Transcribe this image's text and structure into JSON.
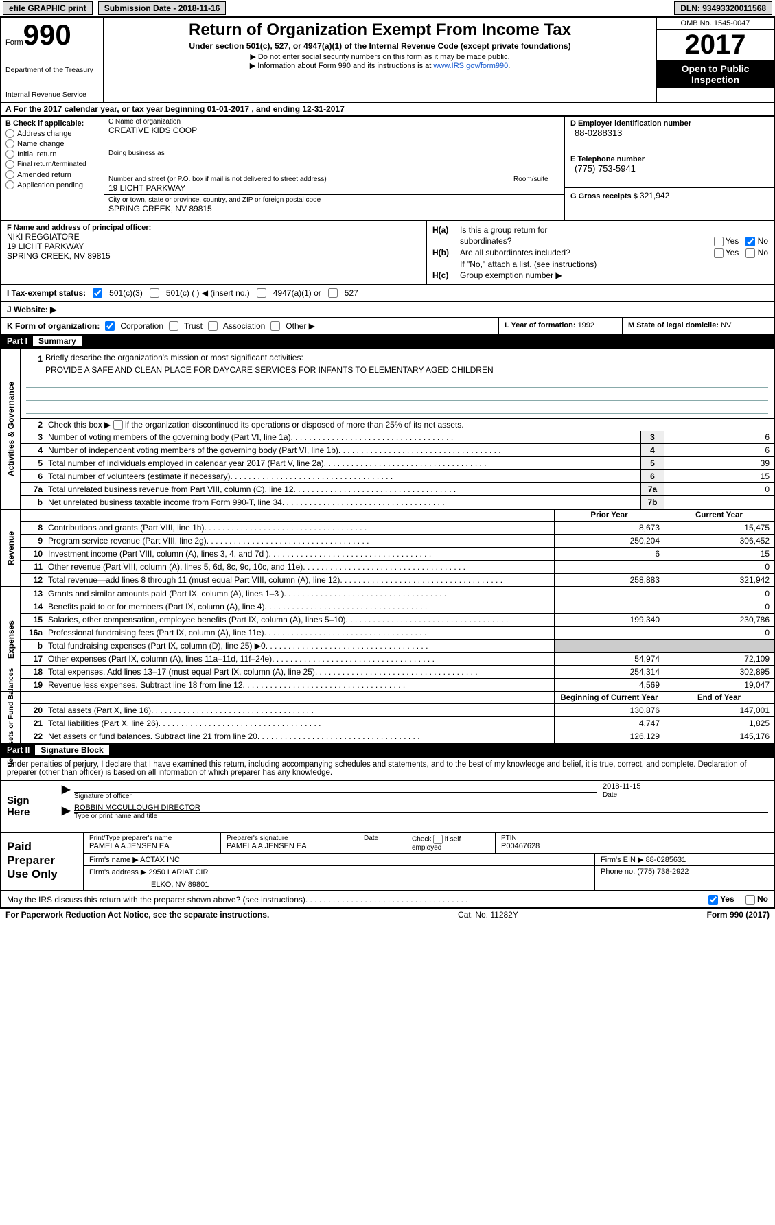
{
  "topbar": {
    "efile": "efile GRAPHIC print",
    "submission_label": "Submission Date - ",
    "submission_date": "2018-11-16",
    "dln_label": "DLN: ",
    "dln": "93493320011568"
  },
  "header": {
    "form_word": "Form",
    "form_num": "990",
    "dept1": "Department of the Treasury",
    "dept2": "Internal Revenue Service",
    "title": "Return of Organization Exempt From Income Tax",
    "subtitle": "Under section 501(c), 527, or 4947(a)(1) of the Internal Revenue Code (except private foundations)",
    "note1": "▶ Do not enter social security numbers on this form as it may be made public.",
    "note2_prefix": "▶ Information about Form 990 and its instructions is at ",
    "note2_link": "www.IRS.gov/form990",
    "omb": "OMB No. 1545-0047",
    "year": "2017",
    "open1": "Open to Public",
    "open2": "Inspection"
  },
  "rowA": "A  For the 2017 calendar year, or tax year beginning 01-01-2017   , and ending 12-31-2017",
  "sectionB": {
    "label": "B Check if applicable:",
    "opts": [
      "Address change",
      "Name change",
      "Initial return",
      "Final return/terminated",
      "Amended return",
      "Application pending"
    ]
  },
  "sectionC": {
    "name_label": "C Name of organization",
    "name": "CREATIVE KIDS COOP",
    "dba_label": "Doing business as",
    "dba": "",
    "street_label": "Number and street (or P.O. box if mail is not delivered to street address)",
    "street": "19 LICHT PARKWAY",
    "room_label": "Room/suite",
    "city_label": "City or town, state or province, country, and ZIP or foreign postal code",
    "city": "SPRING CREEK, NV  89815"
  },
  "sectionD": {
    "ein_label": "D Employer identification number",
    "ein": "88-0288313",
    "tel_label": "E Telephone number",
    "tel": "(775) 753-5941",
    "gross_label": "G Gross receipts $ ",
    "gross": "321,942"
  },
  "sectionF": {
    "label": "F  Name and address of principal officer:",
    "name": "NIKI REGGIATORE",
    "addr1": "19 LICHT PARKWAY",
    "addr2": "SPRING CREEK, NV  89815"
  },
  "sectionH": {
    "ha_label": "H(a)",
    "ha_text1": "Is this a group return for",
    "ha_text2": "subordinates?",
    "hb_label": "H(b)",
    "hb_text": "Are all subordinates included?",
    "h_instr": "If \"No,\" attach a list. (see instructions)",
    "hc_label": "H(c)",
    "hc_text": "Group exemption number ▶",
    "yes": "Yes",
    "no": "No"
  },
  "rowI": {
    "label": "I  Tax-exempt status:",
    "opt1": "501(c)(3)",
    "opt2": "501(c) (  ) ◀ (insert no.)",
    "opt3": "4947(a)(1) or",
    "opt4": "527"
  },
  "rowJ": "J  Website: ▶",
  "rowK": {
    "label": "K Form of organization:",
    "opts": [
      "Corporation",
      "Trust",
      "Association",
      "Other ▶"
    ],
    "year_label": "L Year of formation: ",
    "year": "1992",
    "state_label": "M State of legal domicile: ",
    "state": "NV"
  },
  "part1": {
    "header": "Part I",
    "title": "Summary",
    "vert_labels": [
      "Activities & Governance",
      "Revenue",
      "Expenses",
      "Net Assets or Fund Balances"
    ],
    "line1_label": "Briefly describe the organization's mission or most significant activities:",
    "line1_value": "PROVIDE A SAFE AND CLEAN PLACE FOR DAYCARE SERVICES FOR INFANTS TO ELEMENTARY AGED CHILDREN",
    "line2": "Check this box ▶      if the organization discontinued its operations or disposed of more than 25% of its net assets.",
    "governance_lines": [
      {
        "num": "3",
        "text": "Number of voting members of the governing body (Part VI, line 1a)",
        "box": "3",
        "val": "6"
      },
      {
        "num": "4",
        "text": "Number of independent voting members of the governing body (Part VI, line 1b)",
        "box": "4",
        "val": "6"
      },
      {
        "num": "5",
        "text": "Total number of individuals employed in calendar year 2017 (Part V, line 2a)",
        "box": "5",
        "val": "39"
      },
      {
        "num": "6",
        "text": "Total number of volunteers (estimate if necessary)",
        "box": "6",
        "val": "15"
      },
      {
        "num": "7a",
        "text": "Total unrelated business revenue from Part VIII, column (C), line 12",
        "box": "7a",
        "val": "0"
      },
      {
        "num": "b",
        "text": "Net unrelated business taxable income from Form 990-T, line 34",
        "box": "7b",
        "val": ""
      }
    ],
    "col_headers": {
      "prior": "Prior Year",
      "current": "Current Year"
    },
    "revenue_lines": [
      {
        "num": "8",
        "text": "Contributions and grants (Part VIII, line 1h)",
        "prior": "8,673",
        "current": "15,475"
      },
      {
        "num": "9",
        "text": "Program service revenue (Part VIII, line 2g)",
        "prior": "250,204",
        "current": "306,452"
      },
      {
        "num": "10",
        "text": "Investment income (Part VIII, column (A), lines 3, 4, and 7d )",
        "prior": "6",
        "current": "15"
      },
      {
        "num": "11",
        "text": "Other revenue (Part VIII, column (A), lines 5, 6d, 8c, 9c, 10c, and 11e)",
        "prior": "",
        "current": "0"
      },
      {
        "num": "12",
        "text": "Total revenue—add lines 8 through 11 (must equal Part VIII, column (A), line 12)",
        "prior": "258,883",
        "current": "321,942"
      }
    ],
    "expense_lines": [
      {
        "num": "13",
        "text": "Grants and similar amounts paid (Part IX, column (A), lines 1–3 )",
        "prior": "",
        "current": "0"
      },
      {
        "num": "14",
        "text": "Benefits paid to or for members (Part IX, column (A), line 4)",
        "prior": "",
        "current": "0"
      },
      {
        "num": "15",
        "text": "Salaries, other compensation, employee benefits (Part IX, column (A), lines 5–10)",
        "prior": "199,340",
        "current": "230,786"
      },
      {
        "num": "16a",
        "text": "Professional fundraising fees (Part IX, column (A), line 11e)",
        "prior": "",
        "current": "0"
      },
      {
        "num": "b",
        "text": "Total fundraising expenses (Part IX, column (D), line 25) ▶0",
        "prior": "SHADE",
        "current": "SHADE"
      },
      {
        "num": "17",
        "text": "Other expenses (Part IX, column (A), lines 11a–11d, 11f–24e)",
        "prior": "54,974",
        "current": "72,109"
      },
      {
        "num": "18",
        "text": "Total expenses. Add lines 13–17 (must equal Part IX, column (A), line 25)",
        "prior": "254,314",
        "current": "302,895"
      },
      {
        "num": "19",
        "text": "Revenue less expenses. Subtract line 18 from line 12",
        "prior": "4,569",
        "current": "19,047"
      }
    ],
    "balance_headers": {
      "begin": "Beginning of Current Year",
      "end": "End of Year"
    },
    "balance_lines": [
      {
        "num": "20",
        "text": "Total assets (Part X, line 16)",
        "prior": "130,876",
        "current": "147,001"
      },
      {
        "num": "21",
        "text": "Total liabilities (Part X, line 26)",
        "prior": "4,747",
        "current": "1,825"
      },
      {
        "num": "22",
        "text": "Net assets or fund balances. Subtract line 21 from line 20",
        "prior": "126,129",
        "current": "145,176"
      }
    ]
  },
  "part2": {
    "header": "Part II",
    "title": "Signature Block",
    "declaration": "Under penalties of perjury, I declare that I have examined this return, including accompanying schedules and statements, and to the best of my knowledge and belief, it is true, correct, and complete. Declaration of preparer (other than officer) is based on all information of which preparer has any knowledge.",
    "sign_here": "Sign Here",
    "sig_officer_label": "Signature of officer",
    "sig_date": "2018-11-15",
    "date_label": "Date",
    "officer_name": "ROBBIN MCCULLOUGH DIRECTOR",
    "type_name_label": "Type or print name and title"
  },
  "paid": {
    "label1": "Paid",
    "label2": "Preparer",
    "label3": "Use Only",
    "name_label": "Print/Type preparer's name",
    "name": "PAMELA A JENSEN EA",
    "sig_label": "Preparer's signature",
    "sig": "PAMELA A JENSEN EA",
    "date_label": "Date",
    "check_label": "Check        if self-employed",
    "ptin_label": "PTIN",
    "ptin": "P00467628",
    "firm_name_label": "Firm's name    ▶ ",
    "firm_name": "ACTAX INC",
    "firm_ein_label": "Firm's EIN ▶ ",
    "firm_ein": "88-0285631",
    "firm_addr_label": "Firm's address ▶ ",
    "firm_addr1": "2950 LARIAT CIR",
    "firm_addr2": "ELKO, NV  89801",
    "phone_label": "Phone no. ",
    "phone": "(775) 738-2922"
  },
  "bottom": {
    "question": "May the IRS discuss this return with the preparer shown above? (see instructions)",
    "yes": "Yes",
    "no": "No"
  },
  "footer": {
    "left": "For Paperwork Reduction Act Notice, see the separate instructions.",
    "mid": "Cat. No. 11282Y",
    "right": "Form 990 (2017)"
  }
}
